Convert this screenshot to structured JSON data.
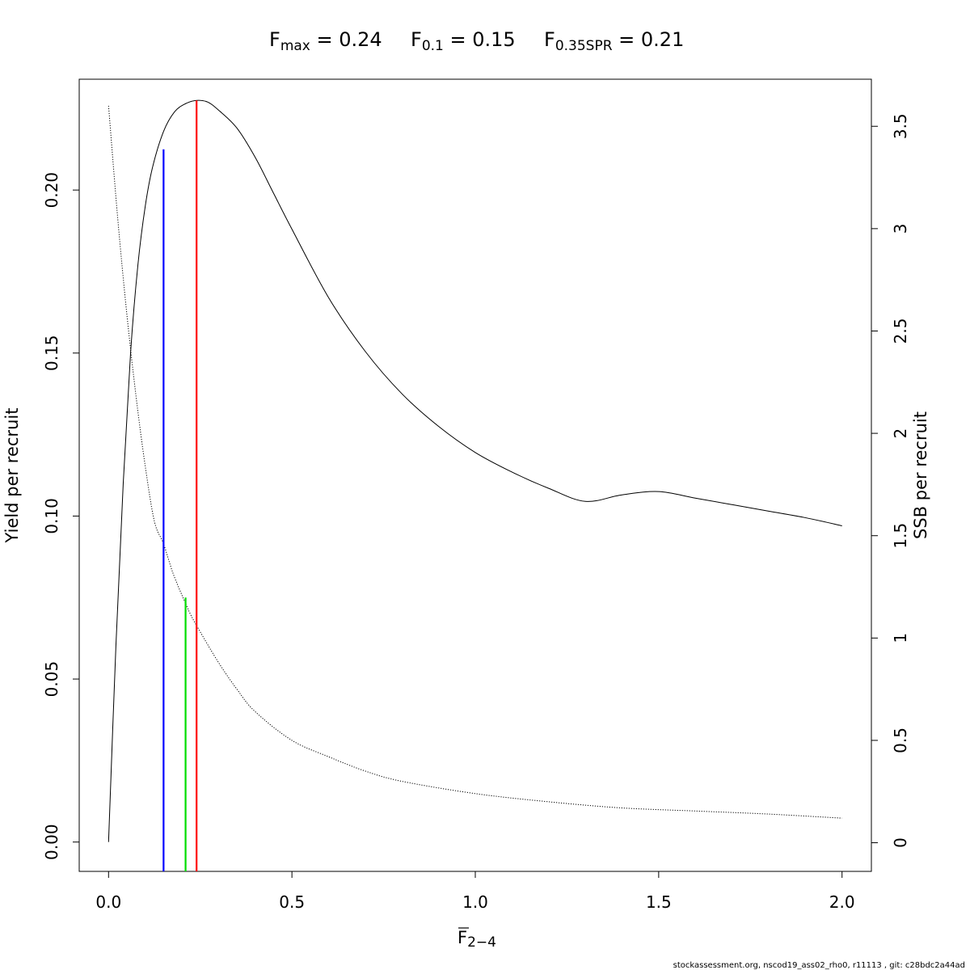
{
  "chart_data": {
    "type": "line",
    "title": {
      "parts": [
        {
          "base": "F",
          "sub": "max",
          "rest": " = 0.24"
        },
        {
          "base": "F",
          "sub": "0.1",
          "rest": " = 0.15"
        },
        {
          "base": "F",
          "sub": "0.35SPR",
          "rest": " = 0.21"
        }
      ]
    },
    "xlabel": {
      "base": "F",
      "sub": "2−4",
      "overbar": true
    },
    "ylabel_left": "Yield per recruit",
    "ylabel_right": "SSB per recruit",
    "xlim": [
      -0.08,
      2.08
    ],
    "ylim_left": [
      -0.009,
      0.234
    ],
    "ylim_right": [
      -0.14,
      3.73
    ],
    "x_ticks": [
      0.0,
      0.5,
      1.0,
      1.5,
      2.0
    ],
    "x_tick_labels": [
      "0.0",
      "0.5",
      "1.0",
      "1.5",
      "2.0"
    ],
    "y_left_ticks": [
      0.0,
      0.05,
      0.1,
      0.15,
      0.2
    ],
    "y_left_tick_labels": [
      "0.00",
      "0.05",
      "0.10",
      "0.15",
      "0.20"
    ],
    "y_right_ticks": [
      0,
      0.5,
      1,
      1.5,
      2,
      2.5,
      3,
      3.5
    ],
    "y_right_tick_labels": [
      "0",
      "0.5",
      "1",
      "1.5",
      "2",
      "2.5",
      "3",
      "3.5"
    ],
    "grid": false,
    "series": [
      {
        "axis": "left",
        "style": "solid",
        "color": "#000000",
        "x": [
          0,
          0.02,
          0.04,
          0.06,
          0.08,
          0.1,
          0.12,
          0.15,
          0.18,
          0.21,
          0.24,
          0.27,
          0.3,
          0.35,
          0.4,
          0.45,
          0.5,
          0.6,
          0.7,
          0.8,
          0.9,
          1.0,
          1.1,
          1.2,
          1.3,
          1.4,
          1.5,
          1.6,
          1.7,
          1.8,
          1.9,
          2.0
        ],
        "y": [
          0.0,
          0.06,
          0.11,
          0.15,
          0.177,
          0.195,
          0.207,
          0.218,
          0.224,
          0.2265,
          0.2275,
          0.227,
          0.2245,
          0.219,
          0.21,
          0.199,
          0.188,
          0.167,
          0.1505,
          0.1375,
          0.1275,
          0.1195,
          0.1135,
          0.1085,
          0.1045,
          0.1065,
          0.1075,
          0.1055,
          0.1035,
          0.1015,
          0.0995,
          0.097
        ]
      },
      {
        "axis": "right",
        "style": "dotted",
        "color": "#000000",
        "x": [
          0,
          0.025,
          0.05,
          0.075,
          0.1,
          0.125,
          0.15,
          0.175,
          0.2,
          0.21,
          0.225,
          0.25,
          0.3,
          0.35,
          0.4,
          0.5,
          0.6,
          0.7,
          0.8,
          1.0,
          1.2,
          1.4,
          1.6,
          1.8,
          2.0
        ],
        "y": [
          3.6,
          3.05,
          2.58,
          2.18,
          1.84,
          1.57,
          1.46,
          1.32,
          1.21,
          1.17,
          1.11,
          1.03,
          0.88,
          0.75,
          0.64,
          0.5,
          0.42,
          0.35,
          0.3,
          0.24,
          0.2,
          0.17,
          0.155,
          0.14,
          0.12
        ]
      }
    ],
    "reference_lines": [
      {
        "name": "Fmax",
        "x": 0.24,
        "y_top": 0.2275,
        "axis": "left",
        "color": "#ff0000"
      },
      {
        "name": "F0.1",
        "x": 0.15,
        "y_top": 0.2125,
        "axis": "left",
        "color": "#0000ff"
      },
      {
        "name": "F0.35SPR",
        "x": 0.21,
        "y_top": 0.075,
        "axis": "left",
        "color": "#00dd00"
      }
    ]
  },
  "footer": "stockassessment.org, nscod19_ass02_rho0, r11113 , git: c28bdc2a44ad"
}
